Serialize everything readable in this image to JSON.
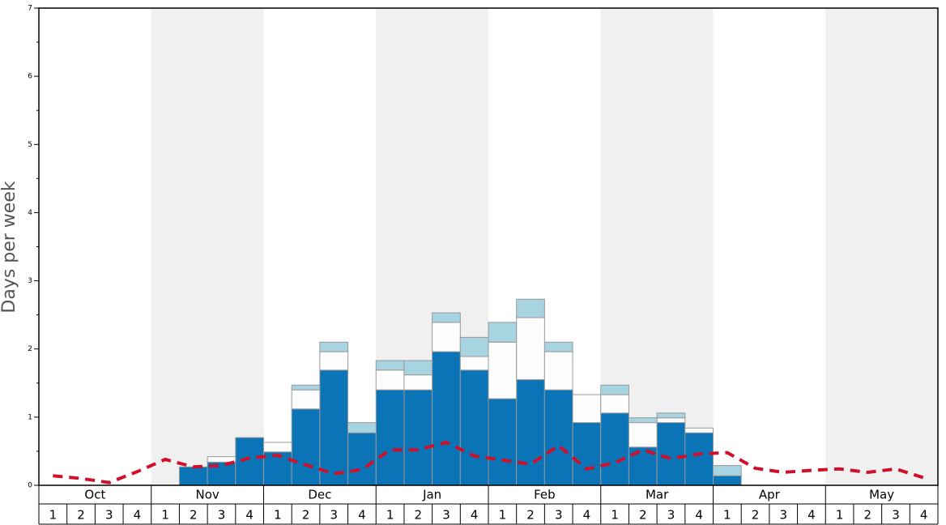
{
  "chart_data": {
    "type": "bar",
    "stacked": true,
    "ylabel": "Days per week",
    "categories": [
      "1",
      "2",
      "3",
      "4",
      "1",
      "2",
      "3",
      "4",
      "1",
      "2",
      "3",
      "4",
      "1",
      "2",
      "3",
      "4",
      "1",
      "2",
      "3",
      "4",
      "1",
      "2",
      "3",
      "4",
      "1",
      "2",
      "3",
      "4",
      "1",
      "2",
      "3",
      "4"
    ],
    "category_groups": [
      "Oct",
      "Nov",
      "Dec",
      "Jan",
      "Feb",
      "Mar",
      "Apr",
      "May"
    ],
    "group_shading": "#f0f0f0",
    "ylim": [
      0,
      7
    ],
    "yticks": [
      0,
      1,
      2,
      3,
      4,
      5,
      6,
      7
    ],
    "yminorticks": [
      0.5,
      1.5,
      2.5,
      3.5,
      4.5,
      5.5,
      6.5
    ],
    "series": [
      {
        "color": "#0a74b6",
        "values": [
          0,
          0,
          0,
          0,
          0,
          0.27,
          0.34,
          0.7,
          0.49,
          1.12,
          1.69,
          0.77,
          1.4,
          1.4,
          1.96,
          1.69,
          1.27,
          1.55,
          1.4,
          0.92,
          1.06,
          0.56,
          0.92,
          0.77,
          0.14,
          0,
          0,
          0,
          0,
          0,
          0,
          0
        ]
      },
      {
        "color": "#fdfdfd",
        "values": [
          0,
          0,
          0,
          0,
          0,
          0,
          0.08,
          0,
          0.14,
          0.28,
          0.27,
          0,
          0.29,
          0.22,
          0.43,
          0.2,
          0.83,
          0.91,
          0.56,
          0.41,
          0.27,
          0.36,
          0.07,
          0.07,
          0,
          0,
          0,
          0,
          0,
          0,
          0,
          0
        ]
      },
      {
        "color": "#a8d4e2",
        "values": [
          0,
          0,
          0,
          0,
          0,
          0,
          0,
          0,
          0,
          0.07,
          0.14,
          0.15,
          0.14,
          0.21,
          0.14,
          0.28,
          0.29,
          0.27,
          0.14,
          0,
          0.14,
          0.07,
          0.07,
          0,
          0.15,
          0,
          0,
          0,
          0,
          0,
          0,
          0
        ]
      },
      {
        "type": "line",
        "color": "#d0102a",
        "values": [
          0.14,
          0.1,
          0.04,
          0.2,
          0.38,
          0.27,
          0.29,
          0.4,
          0.44,
          0.3,
          0.17,
          0.23,
          0.52,
          0.52,
          0.63,
          0.43,
          0.37,
          0.31,
          0.58,
          0.24,
          0.33,
          0.52,
          0.39,
          0.46,
          0.48,
          0.25,
          0.19,
          0.22,
          0.24,
          0.19,
          0.24,
          0.11
        ]
      }
    ]
  }
}
